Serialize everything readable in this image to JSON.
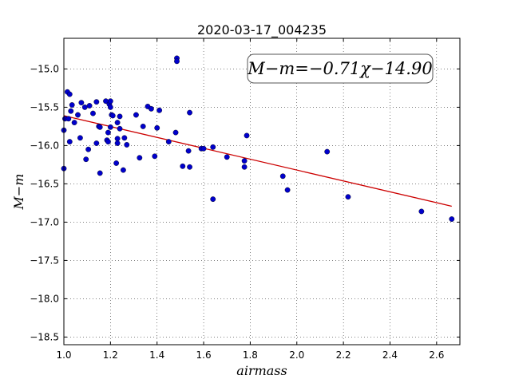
{
  "chart_data": {
    "type": "scatter",
    "title": "2020-03-17_004235",
    "xlabel": "airmass",
    "ylabel": "M−m",
    "xlim": [
      1.0,
      2.7
    ],
    "ylim": [
      -18.6,
      -14.6
    ],
    "xticks": [
      1.0,
      1.2,
      1.4,
      1.6,
      1.8,
      2.0,
      2.2,
      2.4,
      2.6
    ],
    "xtick_labels": [
      "1.0",
      "1.2",
      "1.4",
      "1.6",
      "1.8",
      "2.0",
      "2.2",
      "2.4",
      "2.6"
    ],
    "yticks": [
      -15.0,
      -15.5,
      -16.0,
      -16.5,
      -17.0,
      -17.5,
      -18.0,
      -18.5
    ],
    "ytick_labels": [
      "−15.0",
      "−15.5",
      "−16.0",
      "−16.5",
      "−17.0",
      "−17.5",
      "−18.0",
      "−18.5"
    ],
    "grid": true,
    "annotation": "M−m=−0.71χ−14.90",
    "annotation_placement": "top-right",
    "fit_line": {
      "slope": -0.71,
      "intercept": -14.9,
      "x_range": [
        1.0,
        2.665
      ],
      "color": "#cc0000"
    },
    "marker_color": "#0000cc",
    "points": [
      {
        "x": 1.0,
        "y": -15.8
      },
      {
        "x": 1.0,
        "y": -16.3
      },
      {
        "x": 1.005,
        "y": -15.65
      },
      {
        "x": 1.015,
        "y": -15.3
      },
      {
        "x": 1.02,
        "y": -15.65
      },
      {
        "x": 1.025,
        "y": -15.33
      },
      {
        "x": 1.025,
        "y": -15.95
      },
      {
        "x": 1.03,
        "y": -15.55
      },
      {
        "x": 1.035,
        "y": -15.47
      },
      {
        "x": 1.045,
        "y": -15.7
      },
      {
        "x": 1.06,
        "y": -15.6
      },
      {
        "x": 1.07,
        "y": -15.9
      },
      {
        "x": 1.075,
        "y": -15.44
      },
      {
        "x": 1.09,
        "y": -15.5
      },
      {
        "x": 1.095,
        "y": -16.18
      },
      {
        "x": 1.105,
        "y": -16.05
      },
      {
        "x": 1.11,
        "y": -15.48
      },
      {
        "x": 1.125,
        "y": -15.58
      },
      {
        "x": 1.14,
        "y": -15.43
      },
      {
        "x": 1.14,
        "y": -15.97
      },
      {
        "x": 1.15,
        "y": -15.75
      },
      {
        "x": 1.155,
        "y": -16.36
      },
      {
        "x": 1.155,
        "y": -15.76
      },
      {
        "x": 1.18,
        "y": -15.42
      },
      {
        "x": 1.185,
        "y": -15.93
      },
      {
        "x": 1.19,
        "y": -15.95
      },
      {
        "x": 1.19,
        "y": -15.83
      },
      {
        "x": 1.195,
        "y": -15.46
      },
      {
        "x": 1.2,
        "y": -15.5
      },
      {
        "x": 1.2,
        "y": -15.42
      },
      {
        "x": 1.205,
        "y": -15.6
      },
      {
        "x": 1.21,
        "y": -15.61
      },
      {
        "x": 1.2,
        "y": -15.76
      },
      {
        "x": 1.225,
        "y": -16.23
      },
      {
        "x": 1.23,
        "y": -15.97
      },
      {
        "x": 1.23,
        "y": -15.91
      },
      {
        "x": 1.23,
        "y": -15.7
      },
      {
        "x": 1.24,
        "y": -15.62
      },
      {
        "x": 1.24,
        "y": -15.78
      },
      {
        "x": 1.255,
        "y": -16.32
      },
      {
        "x": 1.26,
        "y": -15.9
      },
      {
        "x": 1.27,
        "y": -15.99
      },
      {
        "x": 1.31,
        "y": -15.6
      },
      {
        "x": 1.325,
        "y": -16.16
      },
      {
        "x": 1.34,
        "y": -15.75
      },
      {
        "x": 1.36,
        "y": -15.49
      },
      {
        "x": 1.375,
        "y": -15.52
      },
      {
        "x": 1.39,
        "y": -16.14
      },
      {
        "x": 1.4,
        "y": -15.77
      },
      {
        "x": 1.41,
        "y": -15.54
      },
      {
        "x": 1.45,
        "y": -15.95
      },
      {
        "x": 1.48,
        "y": -15.83
      },
      {
        "x": 1.485,
        "y": -14.86
      },
      {
        "x": 1.485,
        "y": -14.9
      },
      {
        "x": 1.51,
        "y": -16.27
      },
      {
        "x": 1.535,
        "y": -16.07
      },
      {
        "x": 1.54,
        "y": -15.57
      },
      {
        "x": 1.54,
        "y": -16.28
      },
      {
        "x": 1.59,
        "y": -16.04
      },
      {
        "x": 1.6,
        "y": -16.04
      },
      {
        "x": 1.64,
        "y": -16.02
      },
      {
        "x": 1.64,
        "y": -16.7
      },
      {
        "x": 1.7,
        "y": -16.15
      },
      {
        "x": 1.775,
        "y": -16.2
      },
      {
        "x": 1.775,
        "y": -16.28
      },
      {
        "x": 1.785,
        "y": -15.87
      },
      {
        "x": 1.94,
        "y": -16.4
      },
      {
        "x": 1.96,
        "y": -16.58
      },
      {
        "x": 2.13,
        "y": -16.08
      },
      {
        "x": 2.22,
        "y": -16.67
      },
      {
        "x": 2.535,
        "y": -16.86
      },
      {
        "x": 2.665,
        "y": -16.96
      }
    ]
  }
}
